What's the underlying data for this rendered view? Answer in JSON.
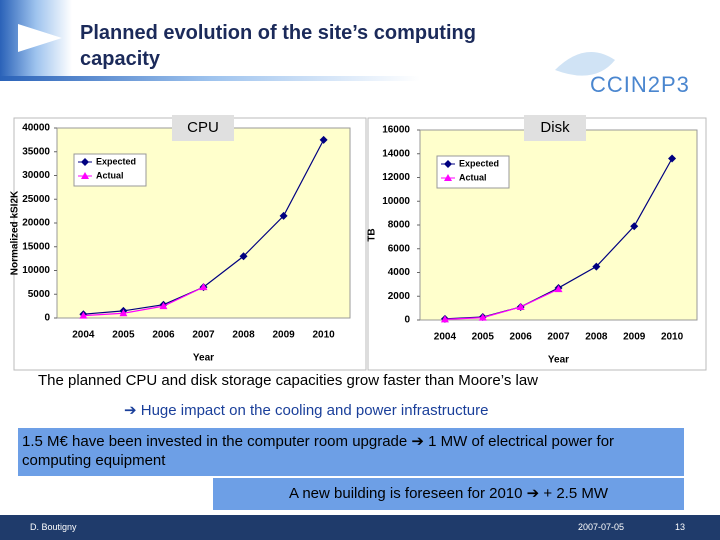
{
  "header": {
    "title": "Planned evolution of the site’s computing capacity",
    "logo": "CCIN2P3"
  },
  "chart_data": [
    {
      "type": "line",
      "title": "CPU",
      "y_label": "Normalized kSI2K",
      "x_label": "Year",
      "categories": [
        "2004",
        "2005",
        "2006",
        "2007",
        "2008",
        "2009",
        "2010"
      ],
      "series": [
        {
          "name": "Expected",
          "color": "#000080",
          "marker": "diamond",
          "values": [
            800,
            1500,
            2800,
            6500,
            13000,
            21500,
            37500
          ]
        },
        {
          "name": "Actual",
          "color": "#ff00ff",
          "marker": "triangle",
          "values": [
            500,
            1000,
            2500,
            6500,
            null,
            null,
            null
          ]
        }
      ],
      "ylim": [
        0,
        40000
      ],
      "yticks": [
        0,
        5000,
        10000,
        15000,
        20000,
        25000,
        30000,
        35000,
        40000
      ],
      "grid": false,
      "legend": "upper left"
    },
    {
      "type": "line",
      "title": "Disk",
      "y_label": "TB",
      "x_label": "Year",
      "categories": [
        "2004",
        "2005",
        "2006",
        "2007",
        "2008",
        "2009",
        "2010"
      ],
      "series": [
        {
          "name": "Expected",
          "color": "#000080",
          "marker": "diamond",
          "values": [
            100,
            250,
            1100,
            2700,
            4500,
            7900,
            13600
          ]
        },
        {
          "name": "Actual",
          "color": "#ff00ff",
          "marker": "triangle",
          "values": [
            50,
            200,
            1100,
            2600,
            null,
            null,
            null
          ]
        }
      ],
      "ylim": [
        0,
        16000
      ],
      "yticks": [
        0,
        2000,
        4000,
        6000,
        8000,
        10000,
        12000,
        14000,
        16000
      ],
      "grid": false,
      "legend": "upper left"
    }
  ],
  "body": {
    "line1": "The planned CPU and disk storage capacities grow faster than Moore’s law",
    "line2": "➔ Huge impact on the cooling and power infrastructure",
    "box1": "1.5 M€ have been invested in the computer room upgrade ➔ 1 MW of electrical power for computing equipment",
    "box2": "A new building is foreseen for 2010 ➔ + 2.5 MW"
  },
  "footer": {
    "author": "D. Boutigny",
    "date": "2007-07-05",
    "page": "13"
  }
}
